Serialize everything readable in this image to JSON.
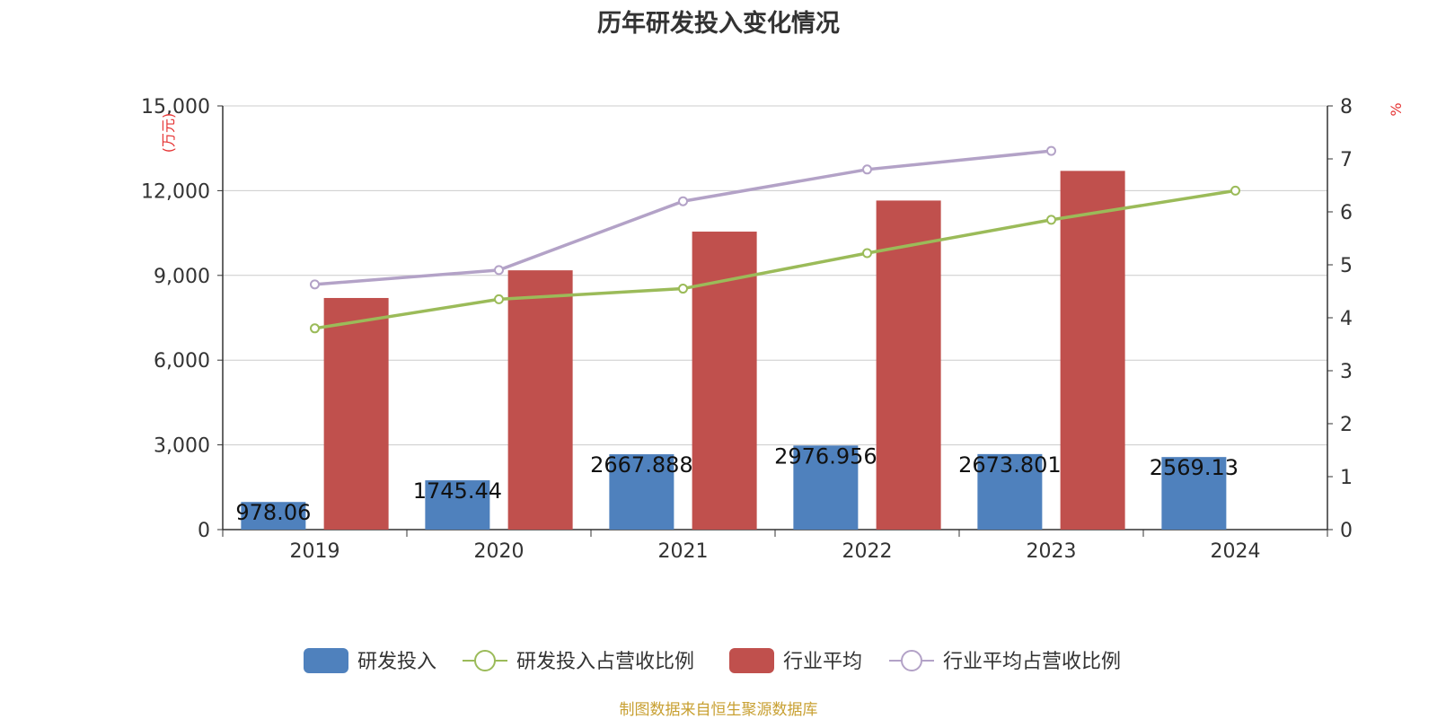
{
  "chart_data": {
    "title": "历年研发投入变化情况",
    "categories": [
      "2019",
      "2020",
      "2021",
      "2022",
      "2023",
      "2024"
    ],
    "y_left": {
      "unit_label": "(万元)",
      "min": 0,
      "max": 15000,
      "ticks": [
        "0",
        "3,000",
        "6,000",
        "9,000",
        "12,000",
        "15,000"
      ]
    },
    "y_right": {
      "unit_label": "%",
      "min": 0,
      "max": 8,
      "ticks": [
        "0",
        "1",
        "2",
        "3",
        "4",
        "5",
        "6",
        "7",
        "8"
      ]
    },
    "grid": true,
    "legend_position": "bottom",
    "series": [
      {
        "name": "研发投入",
        "type": "bar",
        "axis": "left",
        "color": "#4f81bd",
        "values": [
          978.06,
          1745.44,
          2667.888,
          2976.956,
          2673.801,
          2569.13
        ],
        "labels": [
          "978.06",
          "1745.44",
          "2667.888",
          "2976.956",
          "2673.801",
          "2569.13"
        ]
      },
      {
        "name": "研发投入占营收比例",
        "type": "line",
        "axis": "right",
        "color": "#9bbb59",
        "values": [
          3.8,
          4.35,
          4.55,
          5.22,
          5.85,
          6.4
        ]
      },
      {
        "name": "行业平均",
        "type": "bar",
        "axis": "left",
        "color": "#c0504d",
        "values": [
          8200,
          9180,
          10550,
          11650,
          12700,
          null
        ]
      },
      {
        "name": "行业平均占营收比例",
        "type": "line",
        "axis": "right",
        "color": "#b3a2c7",
        "values": [
          4.63,
          4.9,
          6.2,
          6.8,
          7.15,
          null
        ]
      }
    ],
    "source_note": "制图数据来自恒生聚源数据库"
  }
}
